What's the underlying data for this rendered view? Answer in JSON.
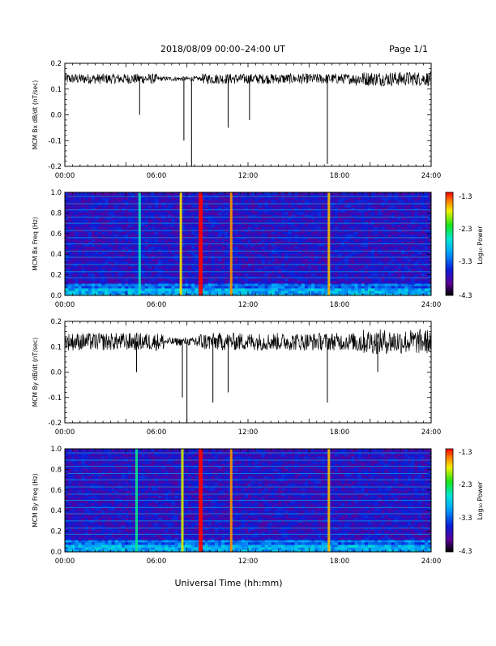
{
  "header": {
    "title": "2018/08/09   00:00–24:00 UT",
    "page": "Page 1/1"
  },
  "footer": {
    "xlabel": "Universal Time (hh:mm)"
  },
  "colorbar": {
    "label": "Log₁₀ Power",
    "ticks": [
      "-1.3",
      "-2.3",
      "-3.3",
      "-4.3"
    ],
    "range": [
      -4.3,
      -1.3
    ]
  },
  "chart_data": [
    {
      "type": "line",
      "ylabel": "MCM Bx dB/dt (nT/sec)",
      "x_ticks": [
        "00:00",
        "06:00",
        "12:00",
        "18:00",
        "24:00"
      ],
      "xlim": [
        0,
        24
      ],
      "y_ticks": [
        "0.2",
        "0.1",
        "0.0",
        "-0.1",
        "-0.2"
      ],
      "ylim": [
        -0.2,
        0.2
      ],
      "baseline": 0.14,
      "noise": 0.02,
      "quiet_band": [
        6.0,
        9.0
      ],
      "events": [
        [
          4.9,
          0.0
        ],
        [
          7.8,
          -0.1
        ],
        [
          8.3,
          -0.2
        ],
        [
          10.7,
          -0.05
        ],
        [
          12.1,
          -0.02
        ],
        [
          17.2,
          -0.19
        ]
      ]
    },
    {
      "type": "heatmap",
      "ylabel": "MCM Bx Freq (Hz)",
      "x_ticks": [
        "00:00",
        "06:00",
        "12:00",
        "18:00",
        "24:00"
      ],
      "xlim": [
        0,
        24
      ],
      "y_ticks": [
        "1.0",
        "0.8",
        "0.6",
        "0.4",
        "0.2",
        "0.0"
      ],
      "ylim": [
        0,
        1.0
      ],
      "zlim": [
        -4.3,
        -1.3
      ],
      "harmonic_lines_hz": [
        0.04,
        0.1,
        0.17,
        0.23,
        0.3,
        0.37,
        0.43,
        0.5,
        0.56,
        0.63,
        0.7,
        0.76,
        0.83,
        0.89,
        0.96
      ],
      "bursts": [
        [
          4.9,
          -2.6
        ],
        [
          7.6,
          -1.8
        ],
        [
          8.9,
          -1.3
        ],
        [
          10.9,
          -1.6
        ],
        [
          17.3,
          -1.7
        ]
      ]
    },
    {
      "type": "line",
      "ylabel": "MCM By dB/dt (nT/sec)",
      "x_ticks": [
        "00:00",
        "06:00",
        "12:00",
        "18:00",
        "24:00"
      ],
      "xlim": [
        0,
        24
      ],
      "y_ticks": [
        "0.2",
        "0.1",
        "0.0",
        "-0.1",
        "-0.2"
      ],
      "ylim": [
        -0.2,
        0.2
      ],
      "baseline": 0.12,
      "noise": 0.035,
      "quiet_band": [
        6.5,
        8.5
      ],
      "events": [
        [
          4.7,
          0.0
        ],
        [
          7.7,
          -0.1
        ],
        [
          8.0,
          -0.2
        ],
        [
          9.7,
          -0.12
        ],
        [
          10.7,
          -0.08
        ],
        [
          17.2,
          -0.12
        ],
        [
          20.5,
          0.0
        ]
      ]
    },
    {
      "type": "heatmap",
      "ylabel": "MCM By Freq (Hz)",
      "x_ticks": [
        "00:00",
        "06:00",
        "12:00",
        "18:00",
        "24:00"
      ],
      "xlim": [
        0,
        24
      ],
      "y_ticks": [
        "1.0",
        "0.8",
        "0.6",
        "0.4",
        "0.2",
        "0.0"
      ],
      "ylim": [
        0,
        1.0
      ],
      "zlim": [
        -4.3,
        -1.3
      ],
      "harmonic_lines_hz": [
        0.04,
        0.1,
        0.17,
        0.23,
        0.3,
        0.37,
        0.43,
        0.5,
        0.56,
        0.63,
        0.7,
        0.76,
        0.83,
        0.89,
        0.96
      ],
      "bursts": [
        [
          4.7,
          -2.5
        ],
        [
          7.7,
          -1.9
        ],
        [
          8.9,
          -1.3
        ],
        [
          10.9,
          -1.6
        ],
        [
          17.3,
          -1.7
        ]
      ]
    }
  ]
}
